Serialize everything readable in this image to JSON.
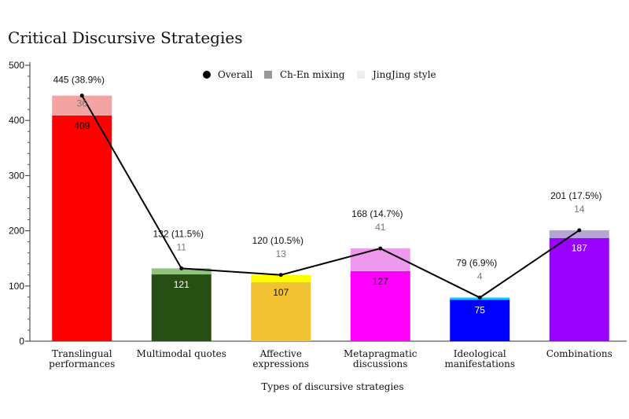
{
  "chart_data": {
    "type": "bar",
    "title": "Critical Discursive Strategies",
    "xlabel": "Types of discursive strategies",
    "ylabel": "",
    "ylim": [
      0,
      500
    ],
    "yticks": [
      0,
      100,
      200,
      300,
      400,
      500
    ],
    "grid": false,
    "stacked": true,
    "legend_position": "top-center",
    "categories": [
      [
        "Translingual",
        "performances"
      ],
      [
        "Multimodal quotes"
      ],
      [
        "Affective",
        "expressions"
      ],
      [
        "Metapragmatic",
        "discussions"
      ],
      [
        "Ideological",
        "manifestations"
      ],
      [
        "Combinations"
      ]
    ],
    "series": [
      {
        "name": "Ch-En mixing",
        "values": [
          409,
          121,
          107,
          127,
          75,
          187
        ]
      },
      {
        "name": "JingJing style",
        "values": [
          36,
          11,
          13,
          41,
          4,
          14
        ]
      },
      {
        "name": "Overall",
        "values": [
          445,
          132,
          120,
          168,
          79,
          201
        ]
      }
    ],
    "total_labels": [
      "445 (38.9%)",
      "132 (11.5%)",
      "120 (10.5%)",
      "168 (14.7%)",
      "79 (6.9%)",
      "201 (17.5%)"
    ],
    "legend": [
      {
        "label": "Overall",
        "marker": "circle",
        "color": "#000000"
      },
      {
        "label": "Ch-En mixing",
        "marker": "square",
        "color": "#999999"
      },
      {
        "label": "JingJing style",
        "marker": "square",
        "color": "#eeeeee"
      }
    ],
    "bottom_colors": [
      "#ff0000",
      "#274e13",
      "#f1c232",
      "#ff00ff",
      "#0000ff",
      "#9900ff"
    ],
    "top_colors": [
      "#f4a3a3",
      "#93c47d",
      "#ffff00",
      "#ee99ee",
      "#00ccff",
      "#b4a7d6"
    ],
    "bottom_label_colors": [
      "#111111",
      "#ffffff",
      "#111111",
      "#111111",
      "#ffffff",
      "#ffffff"
    ],
    "line_color": "#000000"
  }
}
